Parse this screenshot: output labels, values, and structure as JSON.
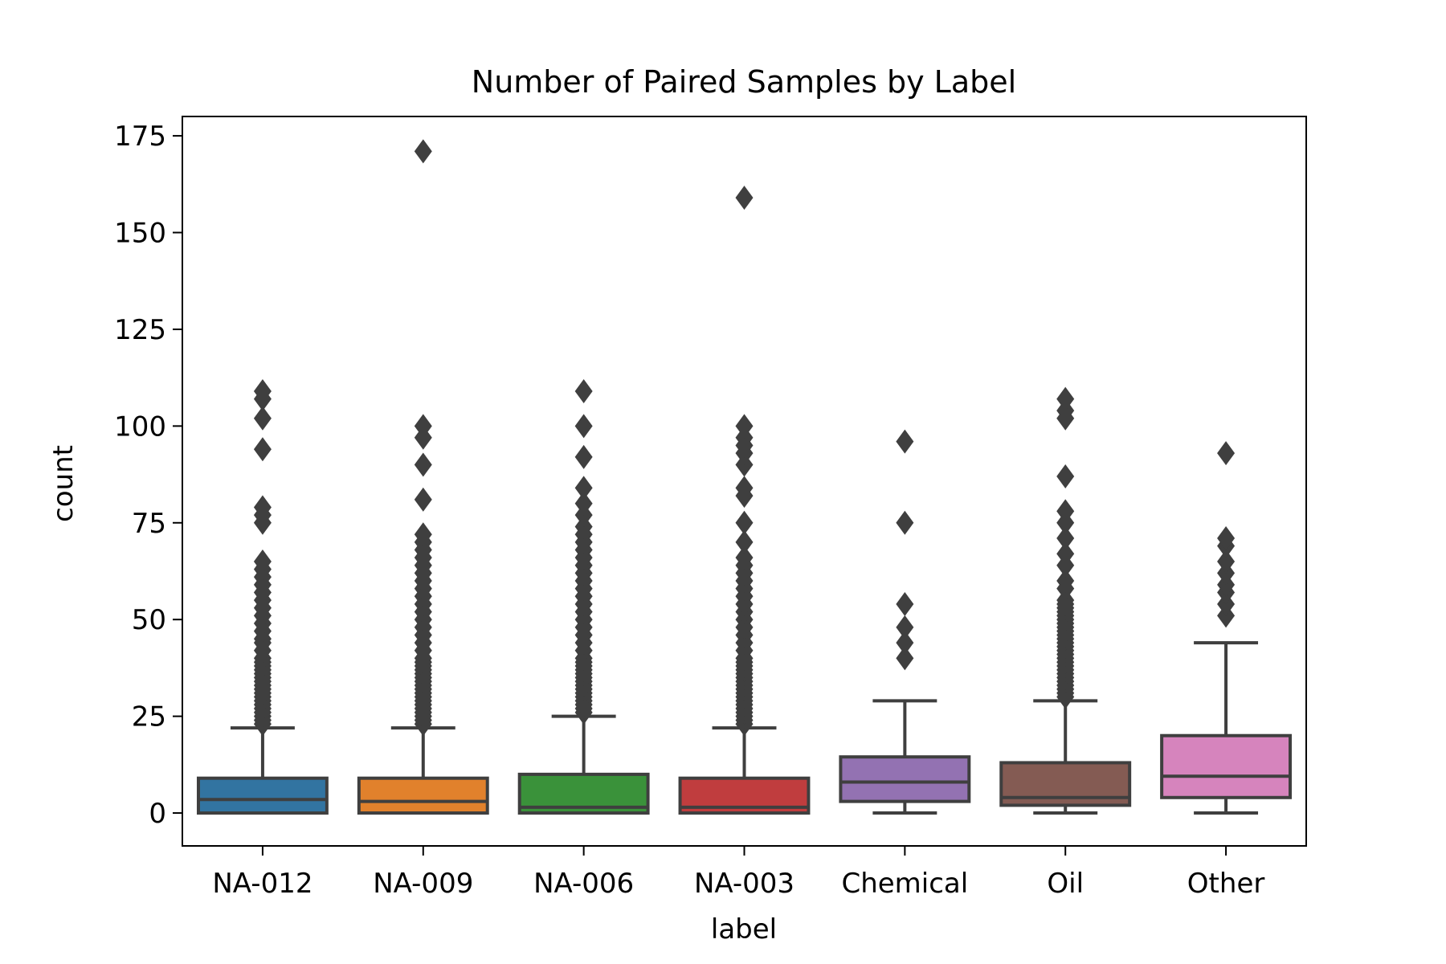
{
  "chart_data": {
    "type": "box",
    "title": "Number of Paired Samples by Label",
    "xlabel": "label",
    "ylabel": "count",
    "ylim": [
      -8.5,
      180
    ],
    "yticks": [
      "0",
      "25",
      "50",
      "75",
      "100",
      "125",
      "150",
      "175"
    ],
    "grid": false,
    "legend": "none",
    "categories": [
      "NA-012",
      "NA-009",
      "NA-006",
      "NA-003",
      "Chemical",
      "Oil",
      "Other"
    ],
    "series": [
      {
        "category": "NA-012",
        "color": "#3274a1",
        "min": 0,
        "q1": 0,
        "median": 3.5,
        "q3": 9,
        "max": 22,
        "outliers": [
          23,
          24,
          25,
          26,
          27,
          28,
          29,
          30,
          31,
          32,
          33,
          34,
          35,
          36,
          37,
          38,
          39,
          40,
          42,
          44,
          45,
          47,
          49,
          51,
          53,
          55,
          57,
          59,
          61,
          63,
          65,
          75,
          77,
          79,
          94,
          102,
          107,
          109
        ]
      },
      {
        "category": "NA-009",
        "color": "#e1812c",
        "min": 0,
        "q1": 0,
        "median": 3,
        "q3": 9,
        "max": 22,
        "outliers": [
          23,
          24,
          25,
          26,
          27,
          28,
          29,
          30,
          31,
          32,
          33,
          34,
          35,
          36,
          37,
          38,
          39,
          40,
          42,
          44,
          46,
          48,
          50,
          52,
          54,
          56,
          58,
          60,
          62,
          64,
          66,
          68,
          70,
          72,
          81,
          90,
          97,
          100,
          171
        ]
      },
      {
        "category": "NA-006",
        "color": "#3a923a",
        "min": 0,
        "q1": 0,
        "median": 1.5,
        "q3": 10,
        "max": 25,
        "outliers": [
          26,
          27,
          28,
          29,
          30,
          31,
          32,
          33,
          34,
          35,
          36,
          37,
          38,
          39,
          40,
          42,
          44,
          46,
          48,
          50,
          52,
          54,
          56,
          58,
          60,
          62,
          64,
          66,
          68,
          70,
          72,
          74,
          77,
          80,
          84,
          92,
          100,
          109
        ]
      },
      {
        "category": "NA-003",
        "color": "#c03d3e",
        "min": 0,
        "q1": 0,
        "median": 1.5,
        "q3": 9,
        "max": 22,
        "outliers": [
          23,
          24,
          25,
          26,
          27,
          28,
          29,
          30,
          31,
          32,
          33,
          34,
          35,
          36,
          37,
          38,
          39,
          40,
          42,
          44,
          46,
          48,
          50,
          52,
          54,
          56,
          58,
          60,
          62,
          64,
          66,
          70,
          75,
          82,
          84,
          90,
          93,
          95,
          97,
          100,
          159
        ]
      },
      {
        "category": "Chemical",
        "color": "#9372b2",
        "min": 0,
        "q1": 3,
        "median": 8,
        "q3": 14.5,
        "max": 29,
        "outliers": [
          40,
          44,
          48,
          54,
          75,
          96
        ]
      },
      {
        "category": "Oil",
        "color": "#845b53",
        "min": 0,
        "q1": 2,
        "median": 4,
        "q3": 13,
        "max": 29,
        "outliers": [
          30,
          31,
          32,
          33,
          34,
          35,
          36,
          37,
          38,
          39,
          40,
          41,
          42,
          43,
          44,
          45,
          46,
          47,
          48,
          49,
          50,
          51,
          52,
          53,
          54,
          55,
          58,
          60,
          64,
          67,
          71,
          75,
          78,
          87,
          102,
          104,
          107
        ]
      },
      {
        "category": "Other",
        "color": "#d684bd",
        "min": 0,
        "q1": 4,
        "median": 9.5,
        "q3": 20,
        "max": 44,
        "outliers": [
          51,
          54,
          57,
          59,
          62,
          65,
          69,
          71,
          93
        ]
      }
    ]
  }
}
